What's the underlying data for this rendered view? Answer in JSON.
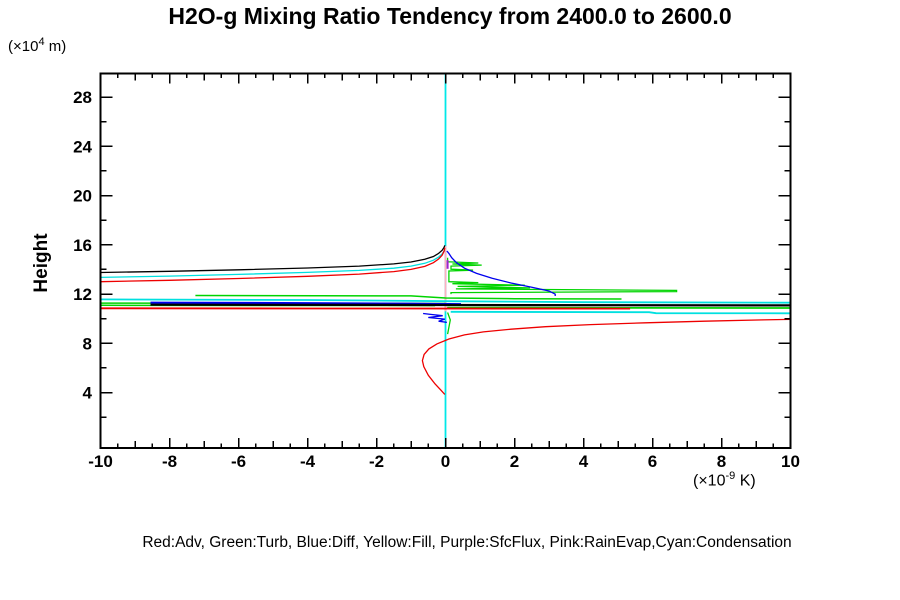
{
  "title": "H2O-g Mixing Ratio Tendency from 2400.0 to 2600.0",
  "y_axis": {
    "label": "Height",
    "unit_prefix": "(×10",
    "unit_sup": "4",
    "unit_suffix": " m)",
    "ticks_labeled": [
      4,
      8,
      12,
      16,
      20,
      24,
      28
    ],
    "minor_step": 2
  },
  "x_axis": {
    "unit_prefix": "(×10",
    "unit_sup": "-9",
    "unit_suffix": " K)",
    "ticks_labeled": [
      -10,
      -8,
      -6,
      -4,
      -2,
      0,
      2,
      4,
      6,
      8,
      10
    ],
    "minor_step": 0.5
  },
  "legend": {
    "text": "Red:Adv,  Green:Turb,  Blue:Diff,  Yellow:Fill,  Purple:SfcFlux,  Pink:RainEvap,Cyan:Condensation"
  },
  "chart_data": {
    "type": "line",
    "title": "H2O-g Mixing Ratio Tendency from 2400.0 to 2600.0",
    "xlabel": "(x10^-9 K)",
    "ylabel": "Height (x10^4 m)",
    "xlim": [
      -10,
      10
    ],
    "ylim": [
      -0.5,
      29.91
    ],
    "grid": false,
    "legend_position": "bottom-text-line",
    "legend_items": [
      {
        "color": "Red",
        "term": "Adv"
      },
      {
        "color": "Green",
        "term": "Turb"
      },
      {
        "color": "Blue",
        "term": "Diff"
      },
      {
        "color": "Yellow",
        "term": "Fill"
      },
      {
        "color": "Purple",
        "term": "SfcFlux"
      },
      {
        "color": "Pink",
        "term": "RainEvap"
      },
      {
        "color": "Cyan",
        "term": "Condensation"
      }
    ],
    "series": [
      {
        "name": "fill-zero-vertical",
        "legend": "Fill",
        "color": "yellow",
        "hex": "#ffff00",
        "w": 1.8,
        "pts": [
          [
            0,
            10.6
          ],
          [
            0,
            11.6
          ]
        ]
      },
      {
        "name": "condensation-zero-vertical",
        "legend": "Condensation",
        "color": "cyan",
        "hex": "#00e8e8",
        "w": 1.8,
        "pts": [
          [
            0,
            -0.5
          ],
          [
            0,
            29.91
          ]
        ]
      },
      {
        "name": "rainevap-zero-vertical",
        "legend": "RainEvap",
        "color": "pink",
        "hex": "#ffb0c0",
        "w": 1.8,
        "pts": [
          [
            0,
            10.6
          ],
          [
            0,
            15.9
          ]
        ]
      },
      {
        "name": "turb-mid-line",
        "legend": "Turb",
        "color": "green",
        "hex": "#00d400",
        "w": 1.5,
        "pts": [
          [
            -7.25,
            11.88
          ],
          [
            -1,
            11.85
          ],
          [
            0,
            11.68
          ],
          [
            2,
            11.62
          ],
          [
            5.1,
            11.6
          ]
        ]
      },
      {
        "name": "turb-left-upper-line",
        "legend": "Turb",
        "color": "green",
        "hex": "#00d400",
        "w": 1.5,
        "pts": [
          [
            -10,
            11.27
          ],
          [
            -4,
            11.25
          ],
          [
            0,
            11.23
          ]
        ]
      },
      {
        "name": "turb-left-lower-line",
        "legend": "Turb",
        "color": "green",
        "hex": "#00d400",
        "w": 1.5,
        "pts": [
          [
            -10,
            11.09
          ],
          [
            -0.3,
            11.06
          ]
        ]
      },
      {
        "name": "turb-right-line",
        "legend": "Turb",
        "color": "green",
        "hex": "#00d400",
        "w": 1.8,
        "pts": [
          [
            0.05,
            10.9
          ],
          [
            5,
            10.88
          ],
          [
            10,
            10.87
          ]
        ]
      },
      {
        "name": "turb-wiggle",
        "legend": "Turb",
        "color": "green",
        "hex": "#00d400",
        "w": 1.3,
        "pts": [
          [
            0.06,
            14.95
          ],
          [
            0.06,
            14.62
          ],
          [
            0.95,
            14.52
          ],
          [
            0.2,
            14.44
          ],
          [
            1.05,
            14.35
          ],
          [
            0.16,
            14.27
          ],
          [
            0.16,
            14.02
          ],
          [
            0.8,
            13.94
          ],
          [
            0.1,
            13.87
          ],
          [
            0.1,
            13.0
          ],
          [
            0.95,
            12.92
          ],
          [
            0.2,
            12.84
          ],
          [
            2.3,
            12.72
          ],
          [
            0.35,
            12.62
          ],
          [
            2.45,
            12.5
          ],
          [
            0.3,
            12.42
          ],
          [
            6.7,
            12.3
          ],
          [
            6.7,
            12.2
          ],
          [
            0.16,
            12.12
          ],
          [
            0.16,
            12.0
          ]
        ]
      },
      {
        "name": "turb-below-hook",
        "legend": "Turb",
        "color": "green",
        "hex": "#00d400",
        "w": 1.3,
        "pts": [
          [
            0.06,
            10.5
          ],
          [
            0.14,
            9.9
          ],
          [
            0.06,
            8.75
          ]
        ]
      },
      {
        "name": "condensation-upper-branch",
        "legend": "Condensation",
        "color": "cyan",
        "hex": "#00e0e0",
        "w": 1.3,
        "pts": [
          [
            -10,
            13.35
          ],
          [
            -8,
            13.46
          ],
          [
            -6,
            13.6
          ],
          [
            -4,
            13.76
          ],
          [
            -2.5,
            13.92
          ],
          [
            -1.5,
            14.1
          ],
          [
            -1,
            14.27
          ],
          [
            -0.6,
            14.5
          ],
          [
            -0.35,
            14.75
          ],
          [
            -0.2,
            15.0
          ],
          [
            -0.1,
            15.25
          ],
          [
            -0.04,
            15.5
          ],
          [
            -0.02,
            15.6
          ]
        ]
      },
      {
        "name": "condensation-cluster-line",
        "legend": "Condensation",
        "color": "cyan",
        "hex": "#00e0e0",
        "w": 1.8,
        "pts": [
          [
            -10,
            11.57
          ],
          [
            -4,
            11.52
          ],
          [
            0,
            11.42
          ],
          [
            4,
            11.34
          ],
          [
            10,
            11.3
          ]
        ]
      },
      {
        "name": "condensation-lower-right-line",
        "legend": "Condensation",
        "color": "cyan",
        "hex": "#00e0e0",
        "w": 1.8,
        "pts": [
          [
            0.15,
            10.56
          ],
          [
            5.9,
            10.53
          ],
          [
            6.1,
            10.45
          ],
          [
            10,
            10.44
          ]
        ]
      },
      {
        "name": "diff-cluster-line",
        "legend": "Diff",
        "color": "blue",
        "hex": "#0000ee",
        "w": 2.2,
        "pts": [
          [
            -8.55,
            11.3
          ],
          [
            -4,
            11.26
          ],
          [
            -1,
            11.22
          ],
          [
            0.45,
            11.18
          ]
        ]
      },
      {
        "name": "diff-right-decay",
        "legend": "Diff",
        "color": "blue",
        "hex": "#0000ee",
        "w": 1.3,
        "pts": [
          [
            0.04,
            15.5
          ],
          [
            0.1,
            15.3
          ],
          [
            0.18,
            14.95
          ],
          [
            0.32,
            14.55
          ],
          [
            0.55,
            14.1
          ],
          [
            0.9,
            13.68
          ],
          [
            1.35,
            13.28
          ],
          [
            1.9,
            12.9
          ],
          [
            2.5,
            12.55
          ],
          [
            3.0,
            12.25
          ],
          [
            3.18,
            12.0
          ],
          [
            3.18,
            11.84
          ]
        ]
      },
      {
        "name": "diff-below-hook",
        "legend": "Diff",
        "color": "blue",
        "hex": "#0000ee",
        "w": 1.3,
        "pts": [
          [
            -0.65,
            10.42
          ],
          [
            -0.4,
            10.34
          ],
          [
            -0.08,
            10.24
          ],
          [
            -0.5,
            10.1
          ],
          [
            -0.02,
            9.97
          ],
          [
            -0.2,
            9.8
          ],
          [
            0.04,
            9.7
          ]
        ]
      },
      {
        "name": "net-upper-branch",
        "legend": "",
        "color": "black",
        "hex": "#000000",
        "w": 1.3,
        "pts": [
          [
            -10,
            13.75
          ],
          [
            -8,
            13.85
          ],
          [
            -6,
            13.97
          ],
          [
            -4,
            14.12
          ],
          [
            -2.5,
            14.27
          ],
          [
            -1.5,
            14.45
          ],
          [
            -1,
            14.6
          ],
          [
            -0.6,
            14.82
          ],
          [
            -0.35,
            15.05
          ],
          [
            -0.2,
            15.3
          ],
          [
            -0.1,
            15.55
          ],
          [
            -0.04,
            15.8
          ],
          [
            -0.02,
            15.95
          ]
        ]
      },
      {
        "name": "net-cluster-line",
        "legend": "",
        "color": "black",
        "hex": "#000000",
        "w": 2.2,
        "pts": [
          [
            -8.55,
            11.14
          ],
          [
            -2,
            11.12
          ],
          [
            2,
            11.1
          ],
          [
            10,
            11.08
          ]
        ]
      },
      {
        "name": "adv-upper-branch",
        "legend": "Adv",
        "color": "red",
        "hex": "#ee0000",
        "w": 1.3,
        "pts": [
          [
            -10,
            13.0
          ],
          [
            -8,
            13.12
          ],
          [
            -6,
            13.26
          ],
          [
            -4,
            13.44
          ],
          [
            -2.5,
            13.62
          ],
          [
            -1.5,
            13.82
          ],
          [
            -1,
            14.0
          ],
          [
            -0.6,
            14.25
          ],
          [
            -0.35,
            14.55
          ],
          [
            -0.2,
            14.85
          ],
          [
            -0.1,
            15.15
          ],
          [
            -0.04,
            15.5
          ],
          [
            -0.02,
            15.75
          ]
        ]
      },
      {
        "name": "adv-cluster-line",
        "legend": "Adv",
        "color": "red",
        "hex": "#ee0000",
        "w": 1.8,
        "pts": [
          [
            -10,
            10.84
          ],
          [
            -4,
            10.83
          ],
          [
            5.35,
            10.82
          ]
        ]
      },
      {
        "name": "adv-lower-branch",
        "legend": "Adv",
        "color": "red",
        "hex": "#ee0000",
        "w": 1.3,
        "pts": [
          [
            -0.02,
            3.85
          ],
          [
            -0.12,
            4.15
          ],
          [
            -0.3,
            4.7
          ],
          [
            -0.5,
            5.4
          ],
          [
            -0.63,
            6.1
          ],
          [
            -0.67,
            6.6
          ],
          [
            -0.62,
            7.1
          ],
          [
            -0.48,
            7.55
          ],
          [
            -0.25,
            7.95
          ],
          [
            0.1,
            8.35
          ],
          [
            0.55,
            8.68
          ],
          [
            1.1,
            8.93
          ],
          [
            1.9,
            9.15
          ],
          [
            2.9,
            9.35
          ],
          [
            4.2,
            9.52
          ],
          [
            5.8,
            9.67
          ],
          [
            7.5,
            9.8
          ],
          [
            9.2,
            9.9
          ],
          [
            10,
            9.94
          ]
        ]
      },
      {
        "name": "sfcflux-segment",
        "legend": "SfcFlux",
        "color": "purple",
        "hex": "#a020d0",
        "w": 2,
        "pts": [
          [
            0.06,
            14.05
          ],
          [
            0.06,
            14.75
          ]
        ]
      }
    ]
  }
}
